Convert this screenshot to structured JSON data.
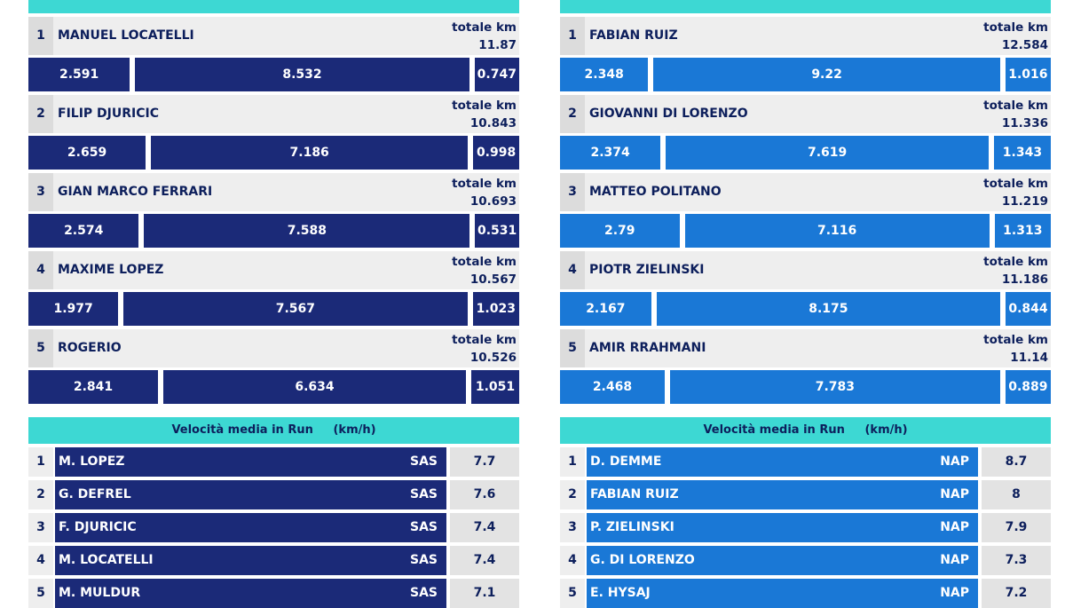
{
  "colors": {
    "accent_header": "#3dd8d3",
    "sassuolo_bar": "#1b2a78",
    "napoli_bar": "#1a78d6",
    "text_dark": "#0d1f5c",
    "row_bg": "#eeeeee"
  },
  "chart_data": [
    {
      "type": "bar",
      "title": "",
      "total_label": "totale km",
      "players": [
        {
          "rank": "1",
          "name": "MANUEL LOCATELLI",
          "total": "11.87",
          "segments": [
            2.591,
            8.532,
            0.747
          ]
        },
        {
          "rank": "2",
          "name": "FILIP DJURICIC",
          "total": "10.843",
          "segments": [
            2.659,
            7.186,
            0.998
          ]
        },
        {
          "rank": "3",
          "name": "GIAN MARCO FERRARI",
          "total": "10.693",
          "segments": [
            2.574,
            7.588,
            0.531
          ]
        },
        {
          "rank": "4",
          "name": "MAXIME LOPEZ",
          "total": "10.567",
          "segments": [
            1.977,
            7.567,
            1.023
          ]
        },
        {
          "rank": "5",
          "name": "ROGERIO",
          "total": "10.526",
          "segments": [
            2.841,
            6.634,
            1.051
          ]
        }
      ]
    },
    {
      "type": "bar",
      "title": "",
      "total_label": "totale km",
      "players": [
        {
          "rank": "1",
          "name": "FABIAN RUIZ",
          "total": "12.584",
          "segments": [
            2.348,
            9.22,
            1.016
          ]
        },
        {
          "rank": "2",
          "name": "GIOVANNI DI LORENZO",
          "total": "11.336",
          "segments": [
            2.374,
            7.619,
            1.343
          ]
        },
        {
          "rank": "3",
          "name": "MATTEO POLITANO",
          "total": "11.219",
          "segments": [
            2.79,
            7.116,
            1.313
          ]
        },
        {
          "rank": "4",
          "name": "PIOTR ZIELINSKI",
          "total": "11.186",
          "segments": [
            2.167,
            8.175,
            0.844
          ]
        },
        {
          "rank": "5",
          "name": "AMIR RRAHMANI",
          "total": "11.14",
          "segments": [
            2.468,
            7.783,
            0.889
          ]
        }
      ]
    },
    {
      "type": "table",
      "title": "Velocità media in Run     (km/h)",
      "rows": [
        {
          "rank": "1",
          "name": "M. LOPEZ",
          "team": "SAS",
          "value": "7.7"
        },
        {
          "rank": "2",
          "name": "G. DEFREL",
          "team": "SAS",
          "value": "7.6"
        },
        {
          "rank": "3",
          "name": "F. DJURICIC",
          "team": "SAS",
          "value": "7.4"
        },
        {
          "rank": "4",
          "name": "M. LOCATELLI",
          "team": "SAS",
          "value": "7.4"
        },
        {
          "rank": "5",
          "name": "M. MULDUR",
          "team": "SAS",
          "value": "7.1"
        }
      ]
    },
    {
      "type": "table",
      "title": "Velocità media in Run     (km/h)",
      "rows": [
        {
          "rank": "1",
          "name": "D. DEMME",
          "team": "NAP",
          "value": "8.7"
        },
        {
          "rank": "2",
          "name": "FABIAN RUIZ",
          "team": "NAP",
          "value": "8"
        },
        {
          "rank": "3",
          "name": "P. ZIELINSKI",
          "team": "NAP",
          "value": "7.9"
        },
        {
          "rank": "4",
          "name": "G. DI LORENZO",
          "team": "NAP",
          "value": "7.3"
        },
        {
          "rank": "5",
          "name": "E. HYSAJ",
          "team": "NAP",
          "value": "7.2"
        }
      ]
    }
  ]
}
